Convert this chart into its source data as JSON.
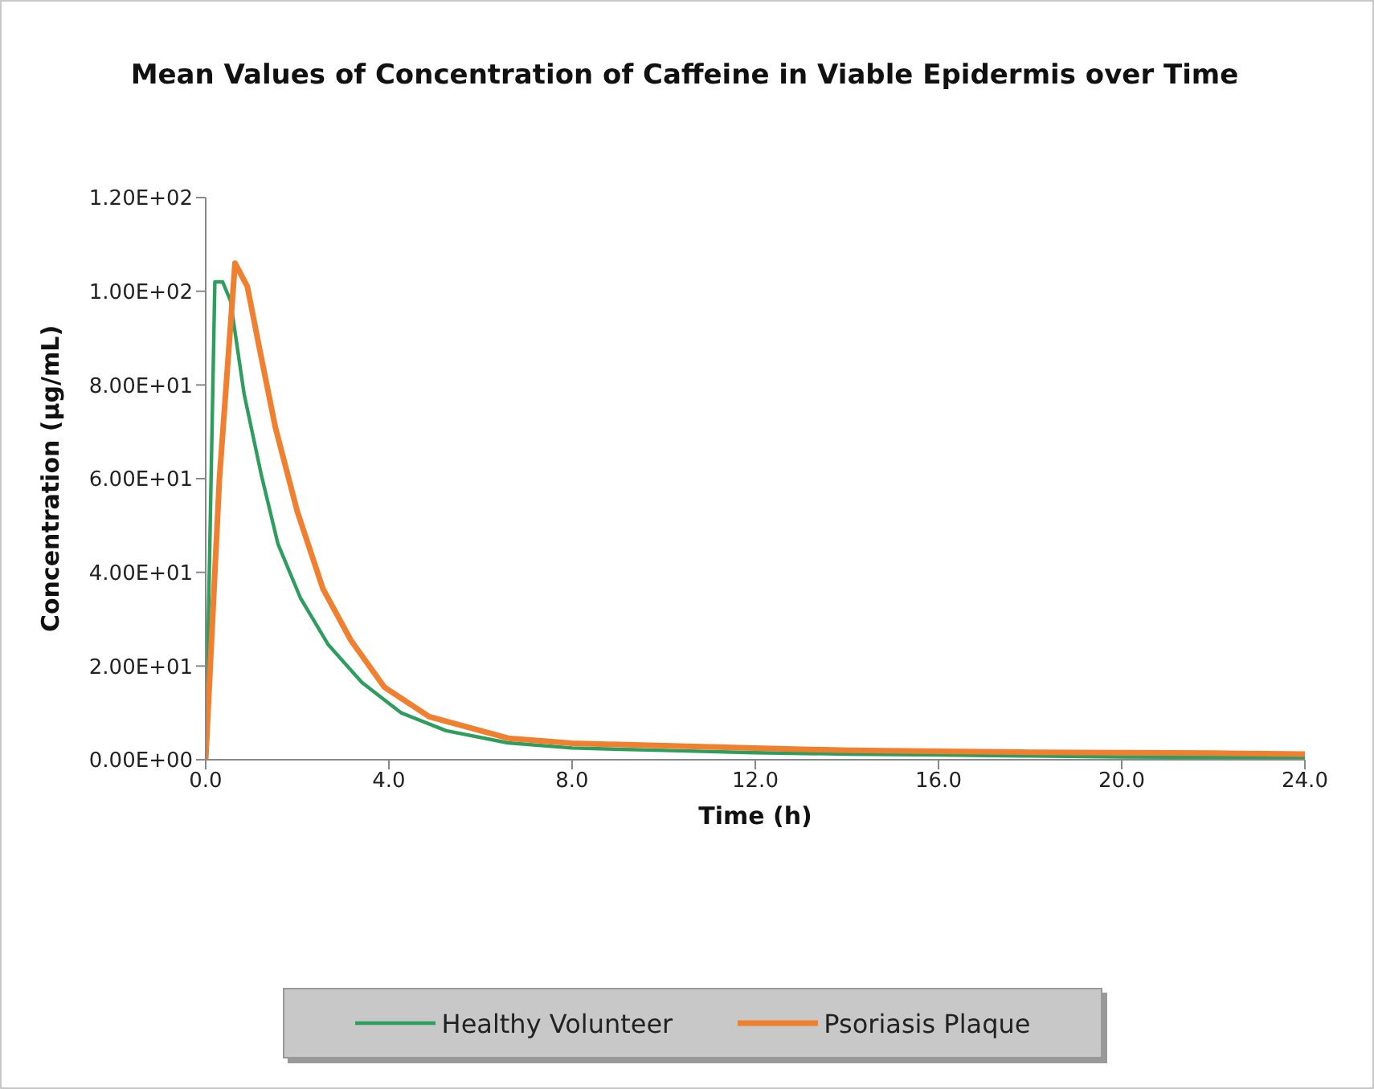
{
  "chart_data": {
    "type": "line",
    "title": "Mean Values of Concentration of Caffeine in Viable Epidermis over Time",
    "xlabel": "Time (h)",
    "ylabel": "Concentration (µg/mL)",
    "xlim": [
      0,
      24
    ],
    "xticks": [
      {
        "value": 0,
        "label": "0.0"
      },
      {
        "value": 4,
        "label": "4.0"
      },
      {
        "value": 8,
        "label": "8.0"
      },
      {
        "value": 12,
        "label": "12.0"
      },
      {
        "value": 16,
        "label": "16.0"
      },
      {
        "value": 20,
        "label": "20.0"
      },
      {
        "value": 24,
        "label": "24.0"
      }
    ],
    "ylim": [
      0,
      120
    ],
    "yticks": [
      {
        "value": 0,
        "label": "0.00E+00"
      },
      {
        "value": 20,
        "label": "2.00E+01"
      },
      {
        "value": 40,
        "label": "4.00E+01"
      },
      {
        "value": 60,
        "label": "6.00E+01"
      },
      {
        "value": 80,
        "label": "8.00E+01"
      },
      {
        "value": 100,
        "label": "1.00E+02"
      },
      {
        "value": 120,
        "label": "1.20E+02"
      }
    ],
    "series": [
      {
        "name": "Healthy Volunteer",
        "color": "#2e9e5e",
        "x": [
          0,
          0.2,
          0.37,
          0.54,
          0.84,
          1.21,
          1.58,
          2.07,
          2.68,
          3.41,
          4.27,
          5.25,
          6.6,
          8,
          10,
          12,
          14,
          16,
          18,
          20,
          22,
          24
        ],
        "values": [
          0,
          102,
          102,
          98,
          78,
          61,
          46,
          34.5,
          24.5,
          16.5,
          10,
          6.2,
          3.6,
          2.5,
          2,
          1.5,
          1.2,
          1,
          0.8,
          0.6,
          0.5,
          0.5
        ]
      },
      {
        "name": "Psoriasis Plaque",
        "color": "#f07f2f",
        "x": [
          0,
          0.3,
          0.64,
          0.91,
          1.15,
          1.52,
          2,
          2.56,
          3.17,
          3.9,
          4.88,
          6.6,
          8,
          10,
          12,
          14,
          16,
          18,
          20,
          22,
          24
        ],
        "values": [
          0,
          60,
          106,
          101,
          89,
          71,
          53,
          36.5,
          25.5,
          15.5,
          9.2,
          4.6,
          3.5,
          3,
          2.5,
          2,
          1.8,
          1.6,
          1.5,
          1.4,
          1.2
        ]
      }
    ],
    "grid": false,
    "legend": "bottom",
    "marker": "none",
    "line_style": "solid"
  }
}
